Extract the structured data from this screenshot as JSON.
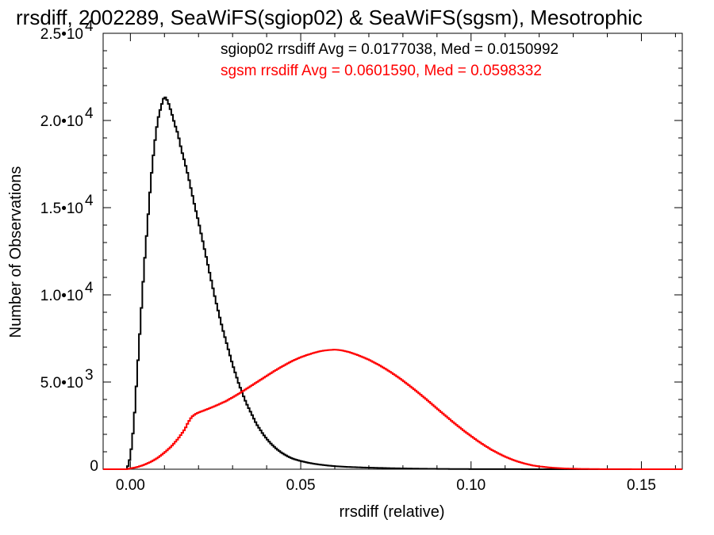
{
  "chart_data": {
    "type": "histogram",
    "title": "rrsdiff, 2002289, SeaWiFS(sgiop02) & SeaWiFS(sgsm), Mesotrophic",
    "xlabel": "rrsdiff (relative)",
    "ylabel": "Number of Observations",
    "xlim": [
      -0.008,
      0.162
    ],
    "ylim": [
      0,
      25000
    ],
    "x_ticks": [
      0.0,
      0.05,
      0.1,
      0.15
    ],
    "x_tick_labels": [
      "0.00",
      "0.05",
      "0.10",
      "0.15"
    ],
    "y_ticks": [
      {
        "value": 0,
        "mantissa": "0",
        "exponent": ""
      },
      {
        "value": 5000,
        "mantissa": "5.0•10",
        "exponent": "3"
      },
      {
        "value": 10000,
        "mantissa": "1.0•10",
        "exponent": "4"
      },
      {
        "value": 15000,
        "mantissa": "1.5•10",
        "exponent": "4"
      },
      {
        "value": 20000,
        "mantissa": "2.0•10",
        "exponent": "4"
      },
      {
        "value": 25000,
        "mantissa": "2.5•10",
        "exponent": "4"
      }
    ],
    "grid": false,
    "legend_position": "top-right",
    "series": [
      {
        "name": "sgiop02",
        "label": "sgiop02 rrsdiff Avg = 0.0177038, Med = 0.0150992",
        "color": "#000000",
        "points": [
          [
            -0.001,
            0
          ],
          [
            0.0,
            700
          ],
          [
            0.001,
            2500
          ],
          [
            0.002,
            5500
          ],
          [
            0.003,
            8500
          ],
          [
            0.004,
            11500
          ],
          [
            0.005,
            14000
          ],
          [
            0.006,
            16500
          ],
          [
            0.007,
            18500
          ],
          [
            0.008,
            20000
          ],
          [
            0.009,
            20800
          ],
          [
            0.01,
            21400
          ],
          [
            0.011,
            21100
          ],
          [
            0.012,
            20500
          ],
          [
            0.013,
            19800
          ],
          [
            0.014,
            19200
          ],
          [
            0.015,
            18300
          ],
          [
            0.016,
            17600
          ],
          [
            0.017,
            16800
          ],
          [
            0.018,
            15900
          ],
          [
            0.019,
            15000
          ],
          [
            0.02,
            14200
          ],
          [
            0.021,
            13300
          ],
          [
            0.022,
            12400
          ],
          [
            0.023,
            11500
          ],
          [
            0.024,
            10600
          ],
          [
            0.025,
            9700
          ],
          [
            0.026,
            8900
          ],
          [
            0.027,
            8100
          ],
          [
            0.028,
            7400
          ],
          [
            0.029,
            6700
          ],
          [
            0.03,
            6000
          ],
          [
            0.031,
            5400
          ],
          [
            0.032,
            4800
          ],
          [
            0.033,
            4300
          ],
          [
            0.034,
            3800
          ],
          [
            0.035,
            3400
          ],
          [
            0.036,
            3000
          ],
          [
            0.037,
            2600
          ],
          [
            0.038,
            2300
          ],
          [
            0.039,
            2000
          ],
          [
            0.04,
            1750
          ],
          [
            0.041,
            1520
          ],
          [
            0.042,
            1330
          ],
          [
            0.043,
            1150
          ],
          [
            0.044,
            1000
          ],
          [
            0.045,
            870
          ],
          [
            0.046,
            760
          ],
          [
            0.047,
            660
          ],
          [
            0.048,
            580
          ],
          [
            0.05,
            470
          ],
          [
            0.052,
            380
          ],
          [
            0.054,
            310
          ],
          [
            0.056,
            255
          ],
          [
            0.058,
            210
          ],
          [
            0.06,
            175
          ],
          [
            0.064,
            130
          ],
          [
            0.068,
            100
          ],
          [
            0.072,
            80
          ],
          [
            0.076,
            60
          ],
          [
            0.08,
            45
          ],
          [
            0.085,
            30
          ],
          [
            0.09,
            20
          ],
          [
            0.095,
            12
          ],
          [
            0.1,
            8
          ],
          [
            0.11,
            4
          ],
          [
            0.12,
            2
          ],
          [
            0.13,
            1
          ],
          [
            0.14,
            0
          ],
          [
            0.162,
            0
          ]
        ]
      },
      {
        "name": "sgsm",
        "label": "sgsm rrsdiff Avg = 0.0601590, Med = 0.0598332",
        "color": "#ff0000",
        "points": [
          [
            -0.001,
            0
          ],
          [
            0.0,
            50
          ],
          [
            0.002,
            120
          ],
          [
            0.004,
            250
          ],
          [
            0.006,
            420
          ],
          [
            0.008,
            650
          ],
          [
            0.01,
            950
          ],
          [
            0.012,
            1300
          ],
          [
            0.014,
            1750
          ],
          [
            0.016,
            2300
          ],
          [
            0.017,
            2700
          ],
          [
            0.018,
            3000
          ],
          [
            0.019,
            3150
          ],
          [
            0.02,
            3250
          ],
          [
            0.022,
            3400
          ],
          [
            0.024,
            3550
          ],
          [
            0.026,
            3720
          ],
          [
            0.028,
            3900
          ],
          [
            0.03,
            4120
          ],
          [
            0.032,
            4350
          ],
          [
            0.034,
            4600
          ],
          [
            0.036,
            4850
          ],
          [
            0.038,
            5100
          ],
          [
            0.04,
            5350
          ],
          [
            0.042,
            5600
          ],
          [
            0.044,
            5830
          ],
          [
            0.046,
            6050
          ],
          [
            0.048,
            6250
          ],
          [
            0.05,
            6420
          ],
          [
            0.052,
            6560
          ],
          [
            0.054,
            6680
          ],
          [
            0.056,
            6780
          ],
          [
            0.058,
            6830
          ],
          [
            0.06,
            6860
          ],
          [
            0.062,
            6820
          ],
          [
            0.064,
            6730
          ],
          [
            0.066,
            6600
          ],
          [
            0.068,
            6450
          ],
          [
            0.07,
            6280
          ],
          [
            0.072,
            6080
          ],
          [
            0.074,
            5860
          ],
          [
            0.076,
            5620
          ],
          [
            0.078,
            5360
          ],
          [
            0.08,
            5080
          ],
          [
            0.082,
            4780
          ],
          [
            0.084,
            4470
          ],
          [
            0.086,
            4150
          ],
          [
            0.088,
            3820
          ],
          [
            0.09,
            3480
          ],
          [
            0.092,
            3150
          ],
          [
            0.094,
            2820
          ],
          [
            0.096,
            2500
          ],
          [
            0.098,
            2190
          ],
          [
            0.1,
            1900
          ],
          [
            0.102,
            1620
          ],
          [
            0.104,
            1360
          ],
          [
            0.106,
            1120
          ],
          [
            0.108,
            910
          ],
          [
            0.11,
            720
          ],
          [
            0.112,
            560
          ],
          [
            0.114,
            420
          ],
          [
            0.116,
            310
          ],
          [
            0.118,
            220
          ],
          [
            0.12,
            160
          ],
          [
            0.124,
            80
          ],
          [
            0.128,
            40
          ],
          [
            0.132,
            20
          ],
          [
            0.136,
            10
          ],
          [
            0.14,
            5
          ],
          [
            0.15,
            2
          ],
          [
            0.162,
            0
          ]
        ]
      }
    ]
  }
}
